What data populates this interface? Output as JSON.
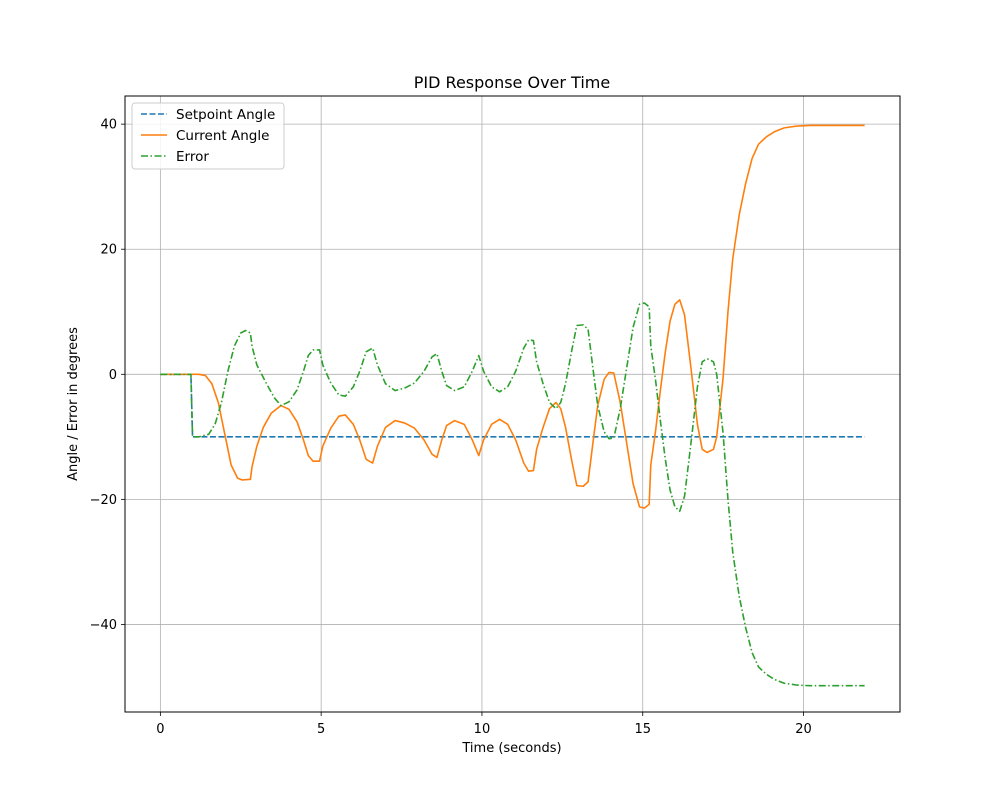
{
  "chart_data": {
    "type": "line",
    "title": "PID Response Over Time",
    "xlabel": "Time (seconds)",
    "ylabel": "Angle / Error in degrees",
    "xlim": [
      -1.1,
      23.0
    ],
    "ylim": [
      -54.0,
      44.5
    ],
    "xticks": [
      0,
      5,
      10,
      15,
      20
    ],
    "yticks": [
      -40,
      -20,
      0,
      20,
      40
    ],
    "grid": true,
    "legend_position": "upper left",
    "series": [
      {
        "name": "Setpoint Angle",
        "color": "#1f77b4",
        "style": "dashed",
        "points": [
          [
            0,
            0
          ],
          [
            0.95,
            0
          ],
          [
            1.0,
            -10
          ],
          [
            21.9,
            -10
          ]
        ]
      },
      {
        "name": "Current Angle",
        "color": "#ff7f0e",
        "style": "solid",
        "points": [
          [
            0,
            0
          ],
          [
            1.2,
            0
          ],
          [
            1.4,
            -0.2
          ],
          [
            1.6,
            -1.5
          ],
          [
            1.8,
            -4.5
          ],
          [
            2.0,
            -9.5
          ],
          [
            2.2,
            -14.5
          ],
          [
            2.4,
            -16.6
          ],
          [
            2.55,
            -16.9
          ],
          [
            2.8,
            -16.8
          ],
          [
            2.85,
            -14.8
          ],
          [
            3.0,
            -11.5
          ],
          [
            3.2,
            -8.5
          ],
          [
            3.45,
            -6.2
          ],
          [
            3.75,
            -5.0
          ],
          [
            4.0,
            -5.6
          ],
          [
            4.25,
            -7.6
          ],
          [
            4.45,
            -10.5
          ],
          [
            4.6,
            -13.0
          ],
          [
            4.75,
            -13.9
          ],
          [
            4.95,
            -13.9
          ],
          [
            5.05,
            -11.5
          ],
          [
            5.3,
            -8.6
          ],
          [
            5.55,
            -6.7
          ],
          [
            5.75,
            -6.5
          ],
          [
            6.0,
            -8.0
          ],
          [
            6.2,
            -10.5
          ],
          [
            6.4,
            -13.6
          ],
          [
            6.6,
            -14.2
          ],
          [
            6.75,
            -11.5
          ],
          [
            7.0,
            -8.5
          ],
          [
            7.3,
            -7.4
          ],
          [
            7.6,
            -7.8
          ],
          [
            7.9,
            -8.6
          ],
          [
            8.2,
            -10.5
          ],
          [
            8.45,
            -12.8
          ],
          [
            8.6,
            -13.3
          ],
          [
            8.75,
            -10.5
          ],
          [
            8.9,
            -8.2
          ],
          [
            9.15,
            -7.4
          ],
          [
            9.45,
            -8.0
          ],
          [
            9.7,
            -10.5
          ],
          [
            9.9,
            -13.0
          ],
          [
            10.05,
            -10.5
          ],
          [
            10.3,
            -8.0
          ],
          [
            10.55,
            -7.2
          ],
          [
            10.8,
            -8.0
          ],
          [
            11.05,
            -10.5
          ],
          [
            11.3,
            -14.2
          ],
          [
            11.45,
            -15.5
          ],
          [
            11.6,
            -15.4
          ],
          [
            11.7,
            -12.0
          ],
          [
            11.9,
            -8.5
          ],
          [
            12.1,
            -5.5
          ],
          [
            12.3,
            -4.5
          ],
          [
            12.45,
            -5.5
          ],
          [
            12.6,
            -8.5
          ],
          [
            12.8,
            -14.0
          ],
          [
            12.95,
            -17.8
          ],
          [
            13.15,
            -17.9
          ],
          [
            13.3,
            -17.2
          ],
          [
            13.45,
            -11.0
          ],
          [
            13.6,
            -5.0
          ],
          [
            13.8,
            -0.8
          ],
          [
            13.95,
            0.3
          ],
          [
            14.1,
            0.2
          ],
          [
            14.3,
            -4.5
          ],
          [
            14.5,
            -11.0
          ],
          [
            14.7,
            -17.5
          ],
          [
            14.9,
            -21.2
          ],
          [
            15.05,
            -21.4
          ],
          [
            15.2,
            -20.8
          ],
          [
            15.25,
            -14.5
          ],
          [
            15.4,
            -9.0
          ],
          [
            15.55,
            -2.5
          ],
          [
            15.7,
            3.5
          ],
          [
            15.85,
            8.5
          ],
          [
            16.0,
            11.2
          ],
          [
            16.15,
            11.9
          ],
          [
            16.3,
            9.5
          ],
          [
            16.5,
            1.0
          ],
          [
            16.7,
            -8.0
          ],
          [
            16.85,
            -12.0
          ],
          [
            17.0,
            -12.5
          ],
          [
            17.2,
            -12.0
          ],
          [
            17.3,
            -10.0
          ],
          [
            17.5,
            -0.5
          ],
          [
            17.65,
            10.0
          ],
          [
            17.8,
            18.5
          ],
          [
            18.0,
            25.5
          ],
          [
            18.2,
            30.5
          ],
          [
            18.4,
            34.5
          ],
          [
            18.6,
            36.8
          ],
          [
            18.85,
            38.0
          ],
          [
            19.1,
            38.8
          ],
          [
            19.4,
            39.4
          ],
          [
            19.8,
            39.7
          ],
          [
            20.2,
            39.8
          ],
          [
            21.9,
            39.8
          ]
        ]
      },
      {
        "name": "Error",
        "color": "#2ca02c",
        "style": "dashdot",
        "points": [
          [
            0,
            0
          ],
          [
            0.95,
            0
          ],
          [
            1.0,
            -10
          ],
          [
            1.2,
            -10
          ],
          [
            1.5,
            -9.6
          ],
          [
            1.7,
            -8.0
          ],
          [
            1.9,
            -4.5
          ],
          [
            2.1,
            0.5
          ],
          [
            2.3,
            4.5
          ],
          [
            2.5,
            6.6
          ],
          [
            2.65,
            7.0
          ],
          [
            2.8,
            6.6
          ],
          [
            2.85,
            4.5
          ],
          [
            3.0,
            1.5
          ],
          [
            3.3,
            -1.5
          ],
          [
            3.55,
            -3.8
          ],
          [
            3.75,
            -5.0
          ],
          [
            4.0,
            -4.4
          ],
          [
            4.25,
            -2.5
          ],
          [
            4.45,
            0.5
          ],
          [
            4.6,
            3.0
          ],
          [
            4.75,
            3.9
          ],
          [
            4.95,
            3.9
          ],
          [
            5.05,
            1.5
          ],
          [
            5.3,
            -1.4
          ],
          [
            5.55,
            -3.3
          ],
          [
            5.75,
            -3.5
          ],
          [
            6.0,
            -2.0
          ],
          [
            6.2,
            0.5
          ],
          [
            6.4,
            3.6
          ],
          [
            6.6,
            4.2
          ],
          [
            6.75,
            1.5
          ],
          [
            7.0,
            -1.5
          ],
          [
            7.3,
            -2.6
          ],
          [
            7.6,
            -2.2
          ],
          [
            7.9,
            -1.4
          ],
          [
            8.2,
            0.5
          ],
          [
            8.45,
            2.8
          ],
          [
            8.6,
            3.3
          ],
          [
            8.75,
            0.5
          ],
          [
            8.9,
            -1.8
          ],
          [
            9.15,
            -2.6
          ],
          [
            9.45,
            -2.0
          ],
          [
            9.7,
            0.5
          ],
          [
            9.9,
            3.0
          ],
          [
            10.05,
            0.5
          ],
          [
            10.3,
            -2.0
          ],
          [
            10.55,
            -2.8
          ],
          [
            10.8,
            -2.0
          ],
          [
            11.05,
            0.5
          ],
          [
            11.3,
            4.2
          ],
          [
            11.45,
            5.5
          ],
          [
            11.6,
            5.4
          ],
          [
            11.7,
            2.0
          ],
          [
            11.9,
            -1.5
          ],
          [
            12.1,
            -4.5
          ],
          [
            12.3,
            -5.5
          ],
          [
            12.45,
            -4.5
          ],
          [
            12.6,
            -1.5
          ],
          [
            12.8,
            4.0
          ],
          [
            12.95,
            7.8
          ],
          [
            13.15,
            7.9
          ],
          [
            13.3,
            7.2
          ],
          [
            13.45,
            1.0
          ],
          [
            13.6,
            -5.0
          ],
          [
            13.8,
            -9.2
          ],
          [
            13.95,
            -10.3
          ],
          [
            14.1,
            -10.2
          ],
          [
            14.3,
            -5.5
          ],
          [
            14.5,
            1.0
          ],
          [
            14.7,
            7.5
          ],
          [
            14.9,
            11.2
          ],
          [
            15.05,
            11.4
          ],
          [
            15.2,
            10.8
          ],
          [
            15.25,
            4.5
          ],
          [
            15.4,
            -1.0
          ],
          [
            15.55,
            -7.5
          ],
          [
            15.7,
            -13.5
          ],
          [
            15.85,
            -18.5
          ],
          [
            16.0,
            -21.2
          ],
          [
            16.15,
            -21.9
          ],
          [
            16.3,
            -19.5
          ],
          [
            16.5,
            -11.0
          ],
          [
            16.7,
            -2.0
          ],
          [
            16.85,
            2.0
          ],
          [
            17.0,
            2.5
          ],
          [
            17.2,
            2.0
          ],
          [
            17.3,
            0.0
          ],
          [
            17.5,
            -9.5
          ],
          [
            17.65,
            -20.0
          ],
          [
            17.8,
            -28.5
          ],
          [
            18.0,
            -35.5
          ],
          [
            18.2,
            -40.5
          ],
          [
            18.4,
            -44.5
          ],
          [
            18.6,
            -46.8
          ],
          [
            18.85,
            -48.0
          ],
          [
            19.1,
            -48.8
          ],
          [
            19.4,
            -49.4
          ],
          [
            19.8,
            -49.7
          ],
          [
            20.2,
            -49.8
          ],
          [
            21.9,
            -49.8
          ]
        ]
      }
    ]
  }
}
